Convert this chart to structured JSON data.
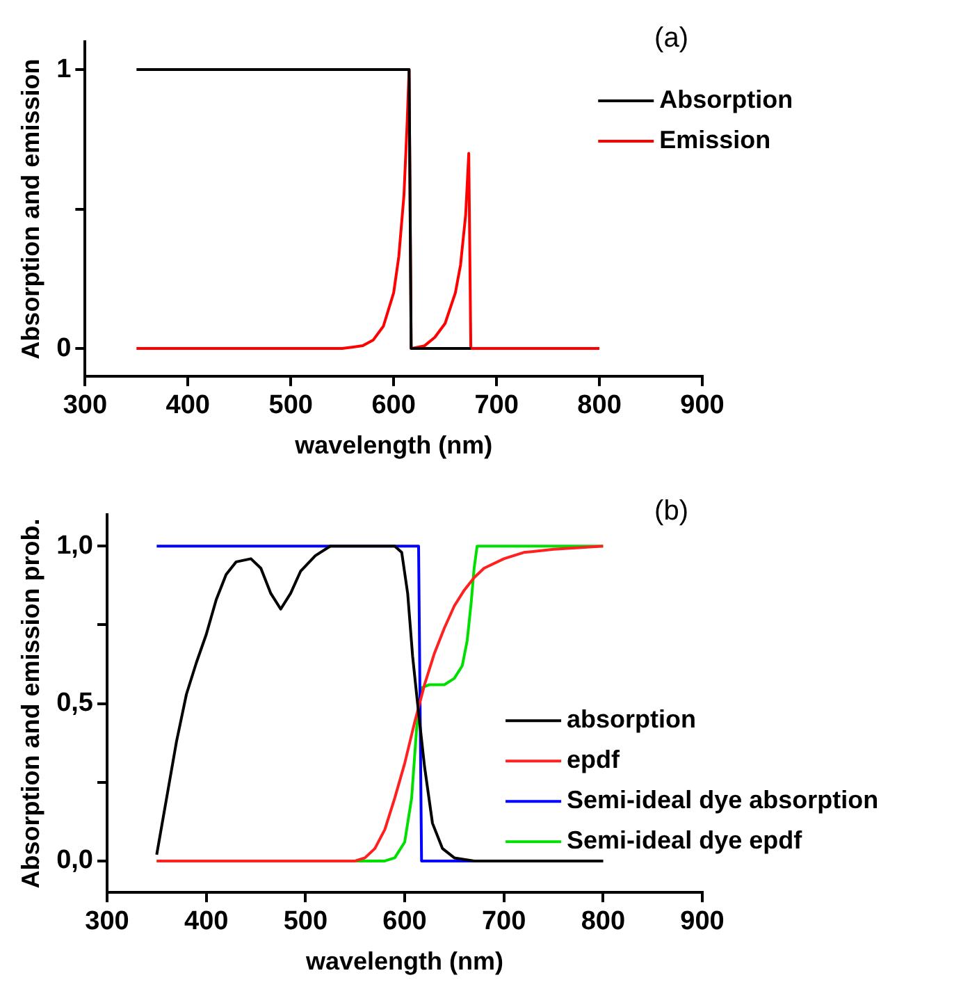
{
  "chart_data": [
    {
      "type": "line",
      "annotations": [
        "(a)"
      ],
      "xlabel": "wavelength (nm)",
      "ylabel": "Absorption and emission",
      "xlim": [
        300,
        900
      ],
      "xticks": [
        300,
        400,
        500,
        600,
        700,
        800,
        900
      ],
      "ylim": [
        -0.1,
        1.1
      ],
      "yticks": [
        0,
        {
          "value": 0.5,
          "label": null
        },
        1
      ],
      "legend": "top right",
      "series": [
        {
          "name": "Absorption",
          "color": "#000000",
          "x": [
            350,
            615,
            617,
            675
          ],
          "values": [
            1,
            1,
            0,
            0
          ]
        },
        {
          "name": "Emission",
          "color": "#ff0000",
          "x": [
            350,
            550,
            570,
            580,
            590,
            600,
            605,
            610,
            613,
            615,
            617,
            630,
            640,
            650,
            660,
            665,
            670,
            673,
            675,
            800
          ],
          "values": [
            0,
            0,
            0.01,
            0.03,
            0.08,
            0.2,
            0.33,
            0.55,
            0.8,
            1,
            0,
            0.01,
            0.04,
            0.09,
            0.2,
            0.3,
            0.48,
            0.7,
            0,
            0
          ]
        }
      ]
    },
    {
      "type": "line",
      "annotations": [
        "(b)"
      ],
      "xlabel": "wavelength (nm)",
      "ylabel": "Absorption and emission prob.",
      "xlim": [
        300,
        900
      ],
      "xticks": [
        300,
        400,
        500,
        600,
        700,
        800,
        900
      ],
      "ylim": [
        -0.1,
        1.1
      ],
      "yticks": [
        {
          "value": 0,
          "label": "0,0"
        },
        {
          "value": 0.25,
          "label": null
        },
        {
          "value": 0.5,
          "label": "0,5"
        },
        {
          "value": 0.75,
          "label": null
        },
        {
          "value": 1,
          "label": "1,0"
        }
      ],
      "legend": "bottom right",
      "series": [
        {
          "name": "absorption",
          "color": "#000000",
          "x": [
            350,
            360,
            370,
            380,
            390,
            400,
            410,
            420,
            430,
            445,
            455,
            465,
            475,
            485,
            495,
            510,
            525,
            590,
            597,
            603,
            608,
            613,
            620,
            628,
            638,
            650,
            670,
            800
          ],
          "values": [
            0.02,
            0.2,
            0.38,
            0.53,
            0.63,
            0.72,
            0.83,
            0.91,
            0.95,
            0.96,
            0.93,
            0.85,
            0.8,
            0.85,
            0.92,
            0.97,
            1,
            1,
            0.98,
            0.85,
            0.65,
            0.5,
            0.3,
            0.12,
            0.04,
            0.01,
            0,
            0
          ]
        },
        {
          "name": "epdf",
          "color": "#ff2020",
          "x": [
            350,
            550,
            560,
            570,
            580,
            590,
            600,
            610,
            620,
            630,
            640,
            650,
            660,
            670,
            680,
            700,
            720,
            750,
            800
          ],
          "values": [
            0,
            0,
            0.01,
            0.04,
            0.1,
            0.2,
            0.31,
            0.44,
            0.56,
            0.66,
            0.74,
            0.81,
            0.86,
            0.9,
            0.93,
            0.96,
            0.98,
            0.99,
            1
          ]
        },
        {
          "name": "Semi-ideal dye absorption",
          "color": "#0000ff",
          "x": [
            350,
            614,
            617,
            800
          ],
          "values": [
            1,
            1,
            0,
            0
          ]
        },
        {
          "name": "Semi-ideal dye epdf",
          "color": "#00e000",
          "x": [
            350,
            580,
            590,
            600,
            607,
            612,
            617,
            625,
            640,
            650,
            658,
            663,
            667,
            670,
            673,
            800
          ],
          "values": [
            0,
            0,
            0.01,
            0.06,
            0.2,
            0.42,
            0.55,
            0.56,
            0.56,
            0.58,
            0.62,
            0.7,
            0.82,
            0.93,
            1,
            1
          ]
        }
      ]
    }
  ]
}
